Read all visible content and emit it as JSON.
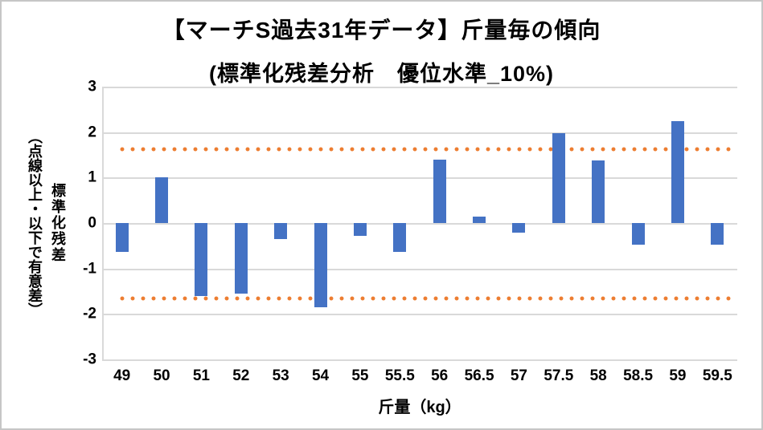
{
  "chart_data": {
    "type": "bar",
    "title": "【マーチS過去31年データ】斤量毎の傾向",
    "subtitle": "(標準化残差分析　優位水準_10%)",
    "categories": [
      "49",
      "50",
      "51",
      "52",
      "53",
      "54",
      "55",
      "55.5",
      "56",
      "56.5",
      "57",
      "57.5",
      "58",
      "58.5",
      "59",
      "59.5"
    ],
    "values": [
      -0.63,
      1.0,
      -1.61,
      -1.56,
      -0.35,
      -1.85,
      -0.28,
      -0.63,
      1.39,
      0.15,
      -0.22,
      1.98,
      1.37,
      -0.47,
      2.24,
      -0.47
    ],
    "xlabel": "斤量（kg）",
    "ylabel": "標準化残差（点線以上・以下で有意差）",
    "ylabel_lines": [
      "標準化残差",
      "（点線以上・以下で有意差）"
    ],
    "ylim": [
      -3,
      3
    ],
    "yticks": [
      3,
      2,
      1,
      0,
      -1,
      -2,
      -3
    ],
    "ytick_labels": [
      "3",
      "2",
      "1",
      "0",
      "-1",
      "-2",
      "-3"
    ],
    "thresholds": {
      "upper": 1.645,
      "lower": -1.645,
      "style": "dotted",
      "color": "#ED7D31"
    },
    "grid": true,
    "legend_position": "none",
    "bar_color": "#4472C4",
    "gridline_color": "#D9D9D9",
    "background_color": "#FFFFFF",
    "border_color": "#C6C6C6"
  }
}
